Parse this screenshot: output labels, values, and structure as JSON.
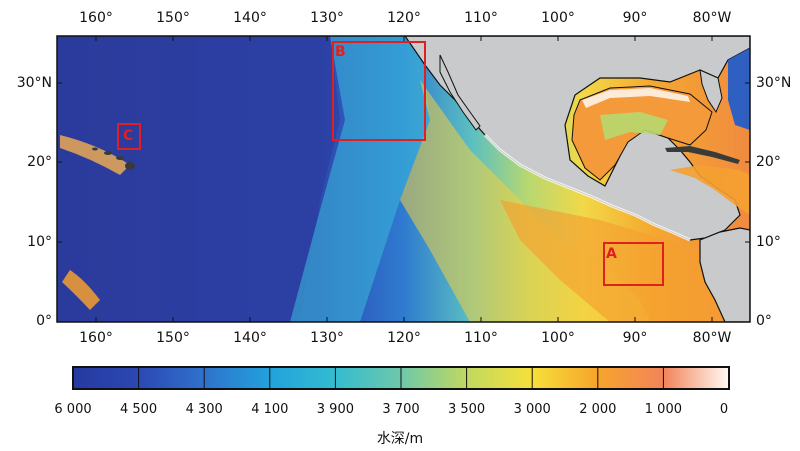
{
  "map": {
    "lon_labels": [
      "160°",
      "150°",
      "140°",
      "130°",
      "120°",
      "110°",
      "100°",
      "90°",
      "80°W"
    ],
    "lat_labels_left": [
      "30°N",
      "20°",
      "10°",
      "0°"
    ],
    "lat_labels_right": [
      "30°N",
      "20°",
      "10°",
      "0°"
    ],
    "regions": [
      {
        "id": "A",
        "label": "A"
      },
      {
        "id": "B",
        "label": "B"
      },
      {
        "id": "C",
        "label": "C"
      }
    ],
    "colors": {
      "land": "#c8cacb",
      "coastline": "#111111",
      "region_box": "#e02020"
    }
  },
  "colorbar": {
    "ticks": [
      "6 000",
      "4 500",
      "4 300",
      "4 100",
      "3 900",
      "3 700",
      "3 500",
      "3 000",
      "2 000",
      "1 000",
      "0"
    ],
    "title": "水深/m",
    "colors": [
      "#2a3a9c",
      "#2f50b8",
      "#2f7bd0",
      "#1ea8da",
      "#42c0c8",
      "#7cc8a0",
      "#c8d860",
      "#f4e03a",
      "#f5a030",
      "#f08050",
      "#ffffff"
    ]
  }
}
